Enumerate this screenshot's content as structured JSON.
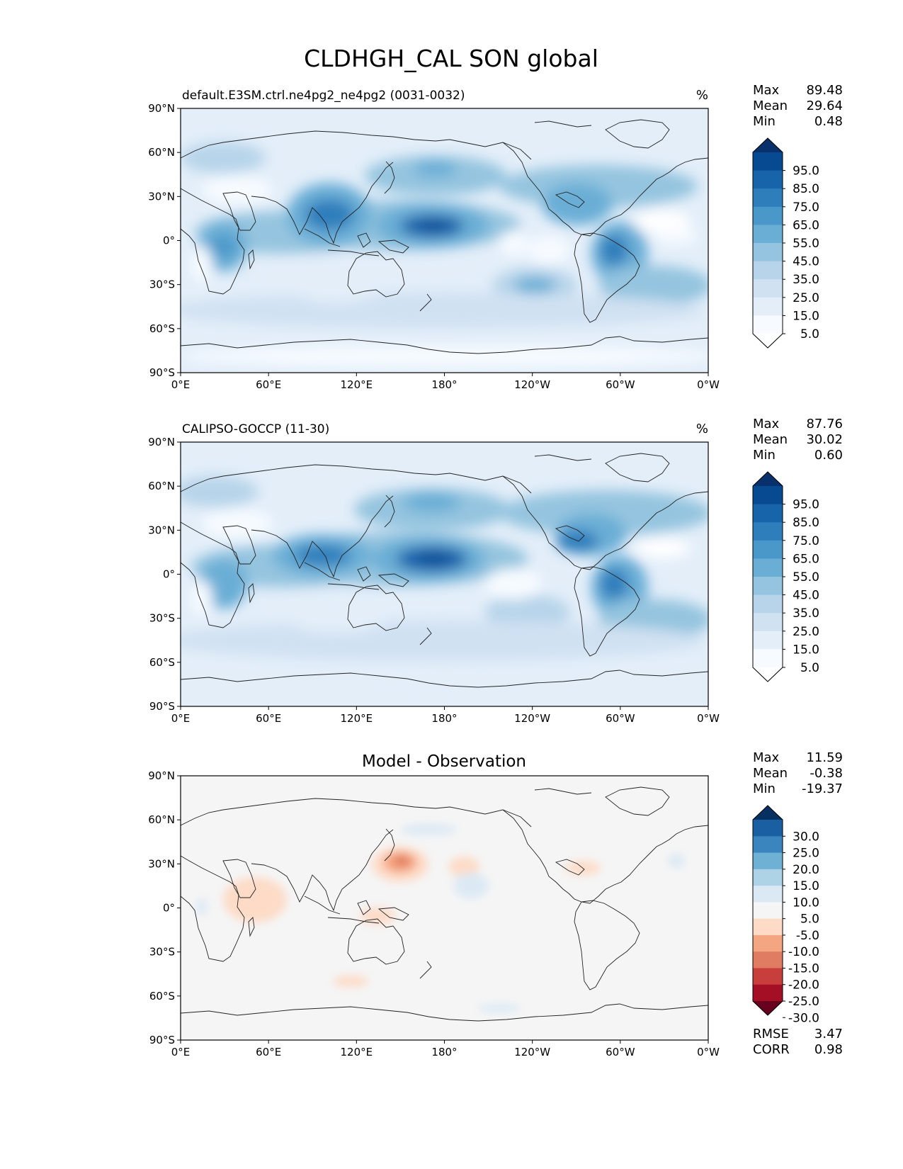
{
  "figure": {
    "title": "CLDHGH_CAL SON global"
  },
  "panels": [
    {
      "id": "model",
      "left_title": "default.E3SM.ctrl.ne4pg2_ne4pg2 (0031-0032)",
      "center_title": "",
      "units": "%",
      "stats": [
        {
          "label": "Max",
          "value": "89.48"
        },
        {
          "label": "Mean",
          "value": "29.64"
        },
        {
          "label": "Min",
          "value": "0.48"
        }
      ],
      "colorbar": {
        "labels": [
          "95.0",
          "85.0",
          "75.0",
          "65.0",
          "55.0",
          "45.0",
          "35.0",
          "25.0",
          "15.0",
          "5.0"
        ],
        "colors": [
          "#ffffff",
          "#f7fbff",
          "#e3eef9",
          "#d0e1f2",
          "#b7d4ea",
          "#94c4df",
          "#6aaed6",
          "#4a98c9",
          "#2e7ebc",
          "#1764ab",
          "#084a91",
          "#08306b"
        ]
      },
      "extra_stats": []
    },
    {
      "id": "obs",
      "left_title": "CALIPSO-GOCCP (11-30)",
      "center_title": "",
      "units": "%",
      "stats": [
        {
          "label": "Max",
          "value": "87.76"
        },
        {
          "label": "Mean",
          "value": "30.02"
        },
        {
          "label": "Min",
          "value": "0.60"
        }
      ],
      "colorbar": {
        "labels": [
          "95.0",
          "85.0",
          "75.0",
          "65.0",
          "55.0",
          "45.0",
          "35.0",
          "25.0",
          "15.0",
          "5.0"
        ],
        "colors": [
          "#ffffff",
          "#f7fbff",
          "#e3eef9",
          "#d0e1f2",
          "#b7d4ea",
          "#94c4df",
          "#6aaed6",
          "#4a98c9",
          "#2e7ebc",
          "#1764ab",
          "#084a91",
          "#08306b"
        ]
      },
      "extra_stats": []
    },
    {
      "id": "diff",
      "left_title": "",
      "center_title": "Model - Observation",
      "units": "",
      "stats": [
        {
          "label": "Max",
          "value": "11.59"
        },
        {
          "label": "Mean",
          "value": "-0.38"
        },
        {
          "label": "Min",
          "value": "-19.37"
        }
      ],
      "colorbar": {
        "labels": [
          "30.0",
          "25.0",
          "20.0",
          "15.0",
          "10.0",
          "5.0",
          "-5.0",
          "-10.0",
          "-15.0",
          "-20.0",
          "-25.0",
          "-30.0"
        ],
        "colors": [
          "#67001f",
          "#a50f26",
          "#c73e3c",
          "#e07c61",
          "#f4a582",
          "#fddbc7",
          "#f5f5f5",
          "#dbe9f4",
          "#aed3e6",
          "#6fb0d5",
          "#3a85bd",
          "#1b5fa3",
          "#053061"
        ]
      },
      "extra_stats": [
        {
          "label": "RMSE",
          "value": "3.47"
        },
        {
          "label": "CORR",
          "value": "0.98"
        }
      ]
    }
  ],
  "axes": {
    "lat_ticks": [
      "90°N",
      "60°N",
      "30°N",
      "0°",
      "30°S",
      "60°S",
      "90°S"
    ],
    "lon_ticks": [
      "0°E",
      "60°E",
      "120°E",
      "180°",
      "120°W",
      "60°W",
      "0°W"
    ]
  }
}
